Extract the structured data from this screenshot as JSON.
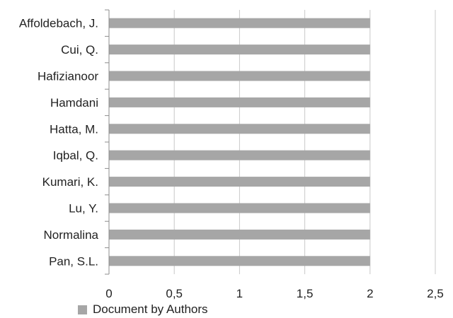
{
  "chart_data": {
    "type": "bar",
    "orientation": "horizontal",
    "title": "",
    "xlabel": "",
    "ylabel": "",
    "categories": [
      "Affoldebach, J.",
      "Cui, Q.",
      "Hafizianoor",
      "Hamdani",
      "Hatta, M.",
      "Iqbal, Q.",
      "Kumari, K.",
      "Lu, Y.",
      "Normalina",
      "Pan, S.L."
    ],
    "series": [
      {
        "name": "Document by Authors",
        "values": [
          2,
          2,
          2,
          2,
          2,
          2,
          2,
          2,
          2,
          2
        ]
      }
    ],
    "xlim": [
      0,
      2.5
    ],
    "xticks": [
      "0",
      "0,5",
      "1",
      "1,5",
      "2",
      "2,5"
    ],
    "grid": "vertical",
    "legend_position": "bottom-left",
    "bar_color": "#a6a6a6",
    "grid_color": "#c8c8c8",
    "axis_color": "#8c8c8c"
  }
}
